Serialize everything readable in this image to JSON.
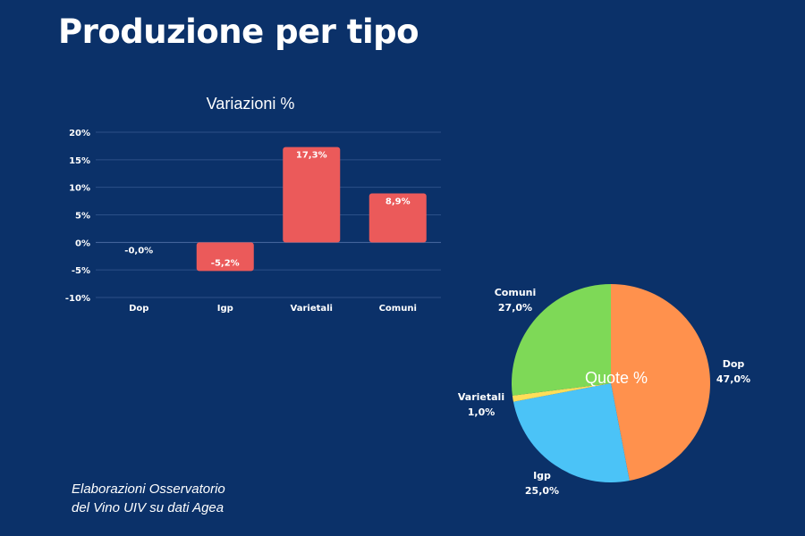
{
  "title": "Produzione per tipo",
  "credit": [
    "Elaborazioni Osservatorio",
    "del Vino UIV su dati Agea"
  ],
  "chart_data": [
    {
      "type": "bar",
      "title": "Variazioni %",
      "categories": [
        "Dop",
        "Igp",
        "Varietali",
        "Comuni"
      ],
      "values": [
        -0.0,
        -5.2,
        17.3,
        8.9
      ],
      "data_labels": [
        "-0,0%",
        "-5,2%",
        "17,3%",
        "8,9%"
      ],
      "ylim": [
        -10,
        20
      ],
      "yticks": [
        20,
        15,
        10,
        5,
        0,
        -5,
        -10
      ],
      "ytick_labels": [
        "20%",
        "15%",
        "10%",
        "5%",
        "0%",
        "-5%",
        "-10%"
      ],
      "grid": true,
      "color": "#eb5a5a"
    },
    {
      "type": "pie",
      "title": "Quote %",
      "categories": [
        "Dop",
        "Igp",
        "Varietali",
        "Comuni"
      ],
      "values": [
        47.0,
        25.0,
        1.0,
        27.0
      ],
      "data_labels": [
        "47,0%",
        "25,0%",
        "1,0%",
        "27,0%"
      ],
      "colors": [
        "#ff914d",
        "#4bc3f7",
        "#ffde59",
        "#7ed957"
      ]
    }
  ]
}
